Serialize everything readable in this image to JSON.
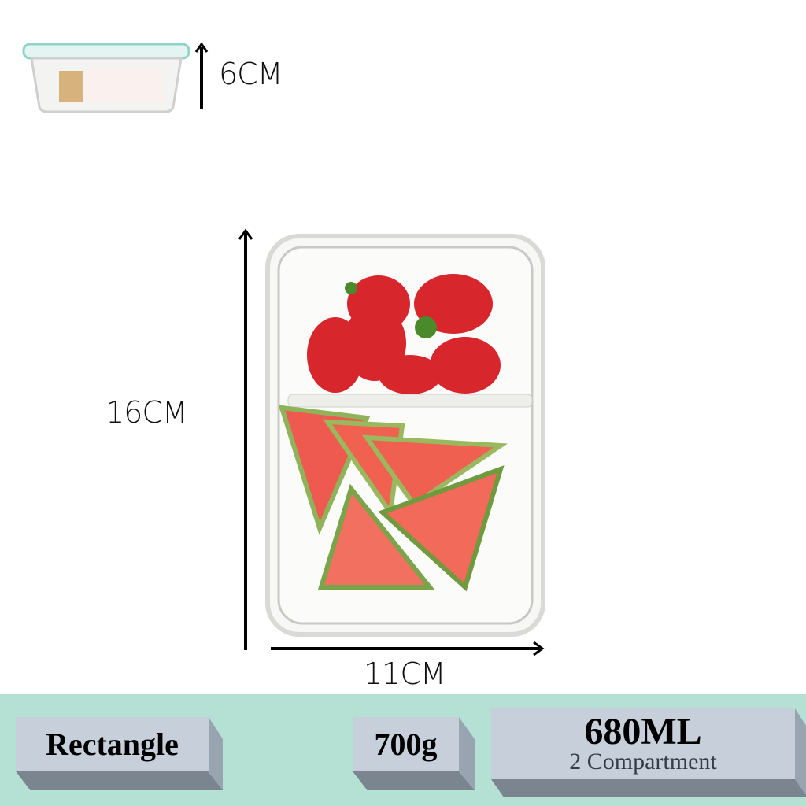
{
  "dimensions": {
    "height": "6CM",
    "length": "16CM",
    "width": "11CM"
  },
  "specs": {
    "shape": "Rectangle",
    "weight": "700g",
    "capacity": "680ML",
    "compartments": "2 Compartment"
  },
  "colors": {
    "band": "#b4e1d4",
    "box_face": "#c7d0da",
    "box_side": "#98a4b0",
    "box_bottom": "#7a8590"
  }
}
